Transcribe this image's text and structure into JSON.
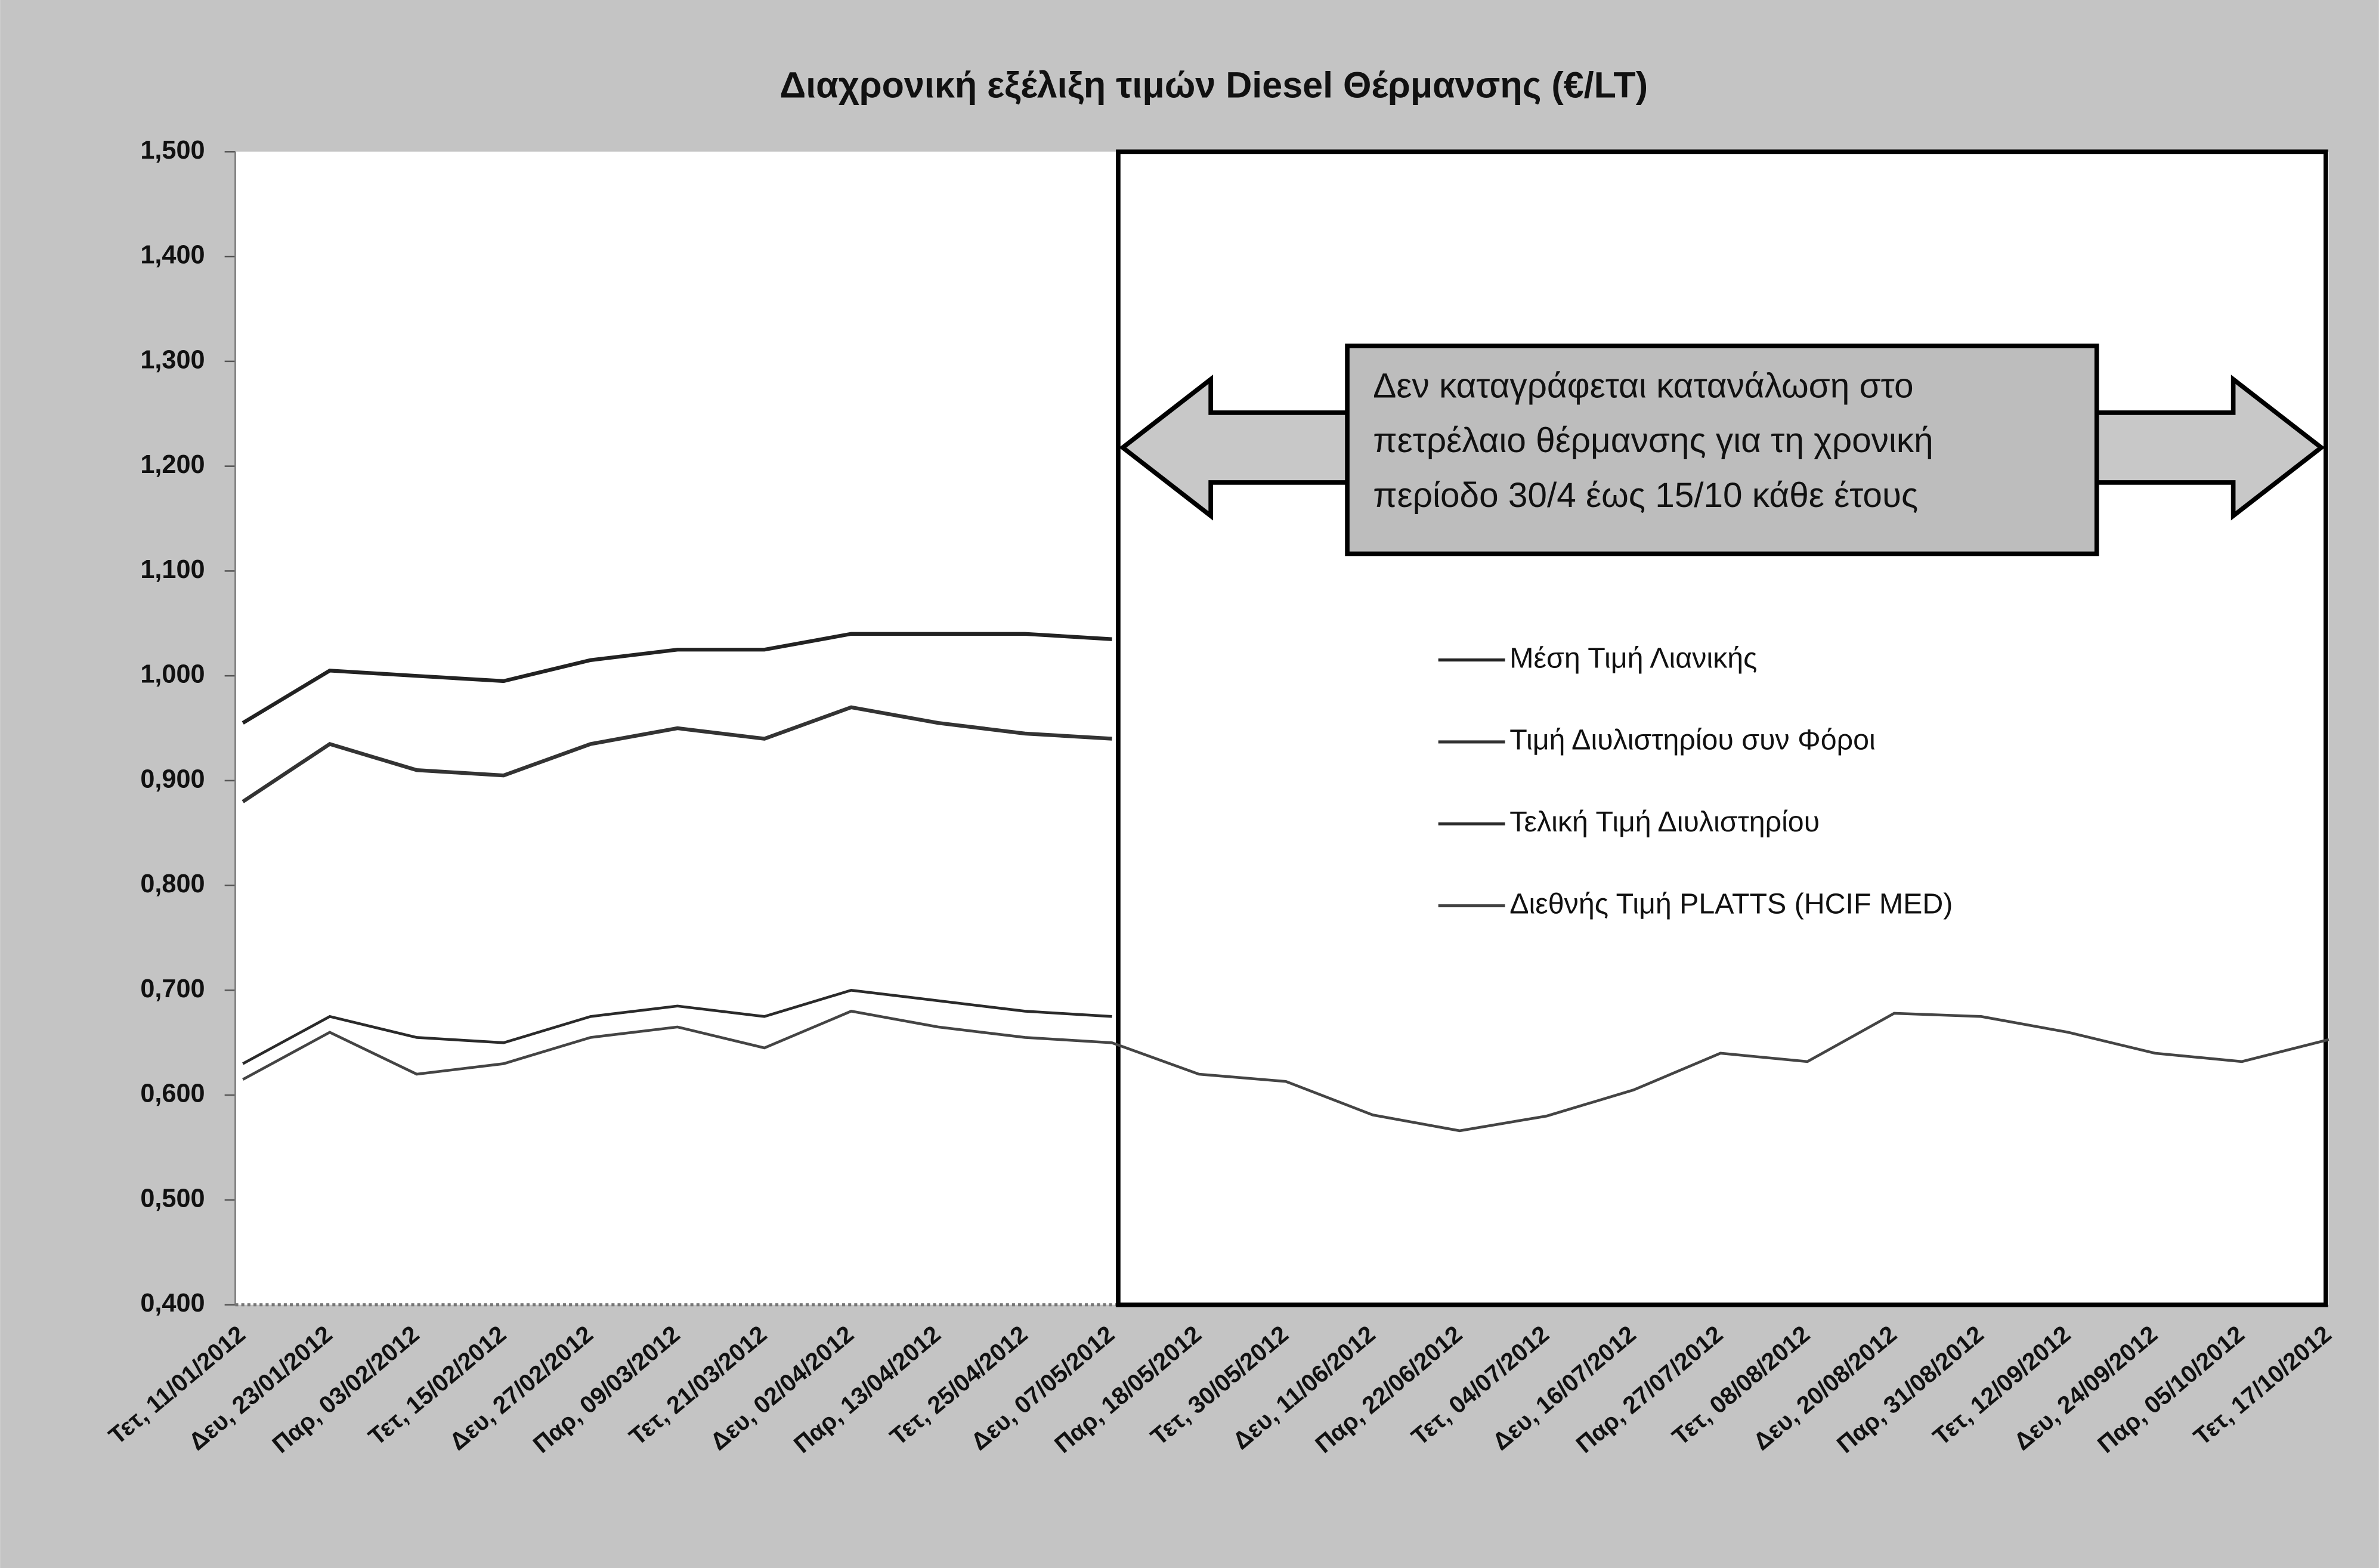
{
  "chart_data": {
    "type": "line",
    "title": "Διαχρονική εξέλιξη τιμών Diesel Θέρμανσης (€/LT)",
    "categories": [
      "Τετ, 11/01/2012",
      "Δευ, 23/01/2012",
      "Παρ, 03/02/2012",
      "Τετ, 15/02/2012",
      "Δευ, 27/02/2012",
      "Παρ, 09/03/2012",
      "Τετ, 21/03/2012",
      "Δευ, 02/04/2012",
      "Παρ, 13/04/2012",
      "Τετ, 25/04/2012",
      "Δευ, 07/05/2012",
      "Παρ, 18/05/2012",
      "Τετ, 30/05/2012",
      "Δευ, 11/06/2012",
      "Παρ, 22/06/2012",
      "Τετ, 04/07/2012",
      "Δευ, 16/07/2012",
      "Παρ, 27/07/2012",
      "Τετ, 08/08/2012",
      "Δευ, 20/08/2012",
      "Παρ, 31/08/2012",
      "Τετ, 12/09/2012",
      "Δευ, 24/09/2012",
      "Παρ, 05/10/2012",
      "Τετ, 17/10/2012"
    ],
    "series": [
      {
        "name": "Μέση Τιμή Λιανικής",
        "color": "#222222",
        "values": [
          0.955,
          1.005,
          1.0,
          0.995,
          1.015,
          1.025,
          1.025,
          1.04,
          1.04,
          1.04,
          1.035,
          null,
          null,
          null,
          null,
          null,
          null,
          null,
          null,
          null,
          null,
          null,
          null,
          null,
          null
        ]
      },
      {
        "name": "Τιμή Διυλιστηρίου συν Φόροι",
        "color": "#333333",
        "values": [
          0.88,
          0.935,
          0.91,
          0.905,
          0.935,
          0.95,
          0.94,
          0.97,
          0.955,
          0.945,
          0.94,
          null,
          null,
          null,
          null,
          null,
          null,
          null,
          null,
          null,
          null,
          null,
          null,
          null,
          null
        ]
      },
      {
        "name": "Τελική Τιμή Διυλιστηρίου",
        "color": "#2a2a2a",
        "values": [
          0.63,
          0.675,
          0.655,
          0.65,
          0.675,
          0.685,
          0.675,
          0.7,
          0.69,
          0.68,
          0.675,
          null,
          null,
          null,
          null,
          null,
          null,
          null,
          null,
          null,
          null,
          null,
          null,
          null,
          null
        ]
      },
      {
        "name": "Διεθνής Τιμή PLATTS (HCIF MED)",
        "color": "#444444",
        "values": [
          0.615,
          0.66,
          0.62,
          0.63,
          0.655,
          0.665,
          0.645,
          0.68,
          0.665,
          0.655,
          0.65,
          0.62,
          0.613,
          0.581,
          0.566,
          0.58,
          0.605,
          0.64,
          0.632,
          0.678,
          0.675,
          0.66,
          0.64,
          0.632,
          0.653
        ]
      }
    ],
    "ylim": [
      0.4,
      1.5
    ],
    "yticks": [
      {
        "value": 0.4,
        "label": "0,400"
      },
      {
        "value": 0.5,
        "label": "0,500"
      },
      {
        "value": 0.6,
        "label": "0,600"
      },
      {
        "value": 0.7,
        "label": "0,700"
      },
      {
        "value": 0.8,
        "label": "0,800"
      },
      {
        "value": 0.9,
        "label": "0,900"
      },
      {
        "value": 1.0,
        "label": "1,000"
      },
      {
        "value": 1.1,
        "label": "1,100"
      },
      {
        "value": 1.2,
        "label": "1,200"
      },
      {
        "value": 1.3,
        "label": "1,300"
      },
      {
        "value": 1.4,
        "label": "1,400"
      },
      {
        "value": 1.5,
        "label": "1,500"
      }
    ],
    "annotation": [
      "Δεν καταγράφεται κατανάλωση στο",
      "πετρέλαιο θέρμανσης για τη χρονική",
      "περίοδο 30/4 έως 15/10 κάθε έτους"
    ]
  }
}
